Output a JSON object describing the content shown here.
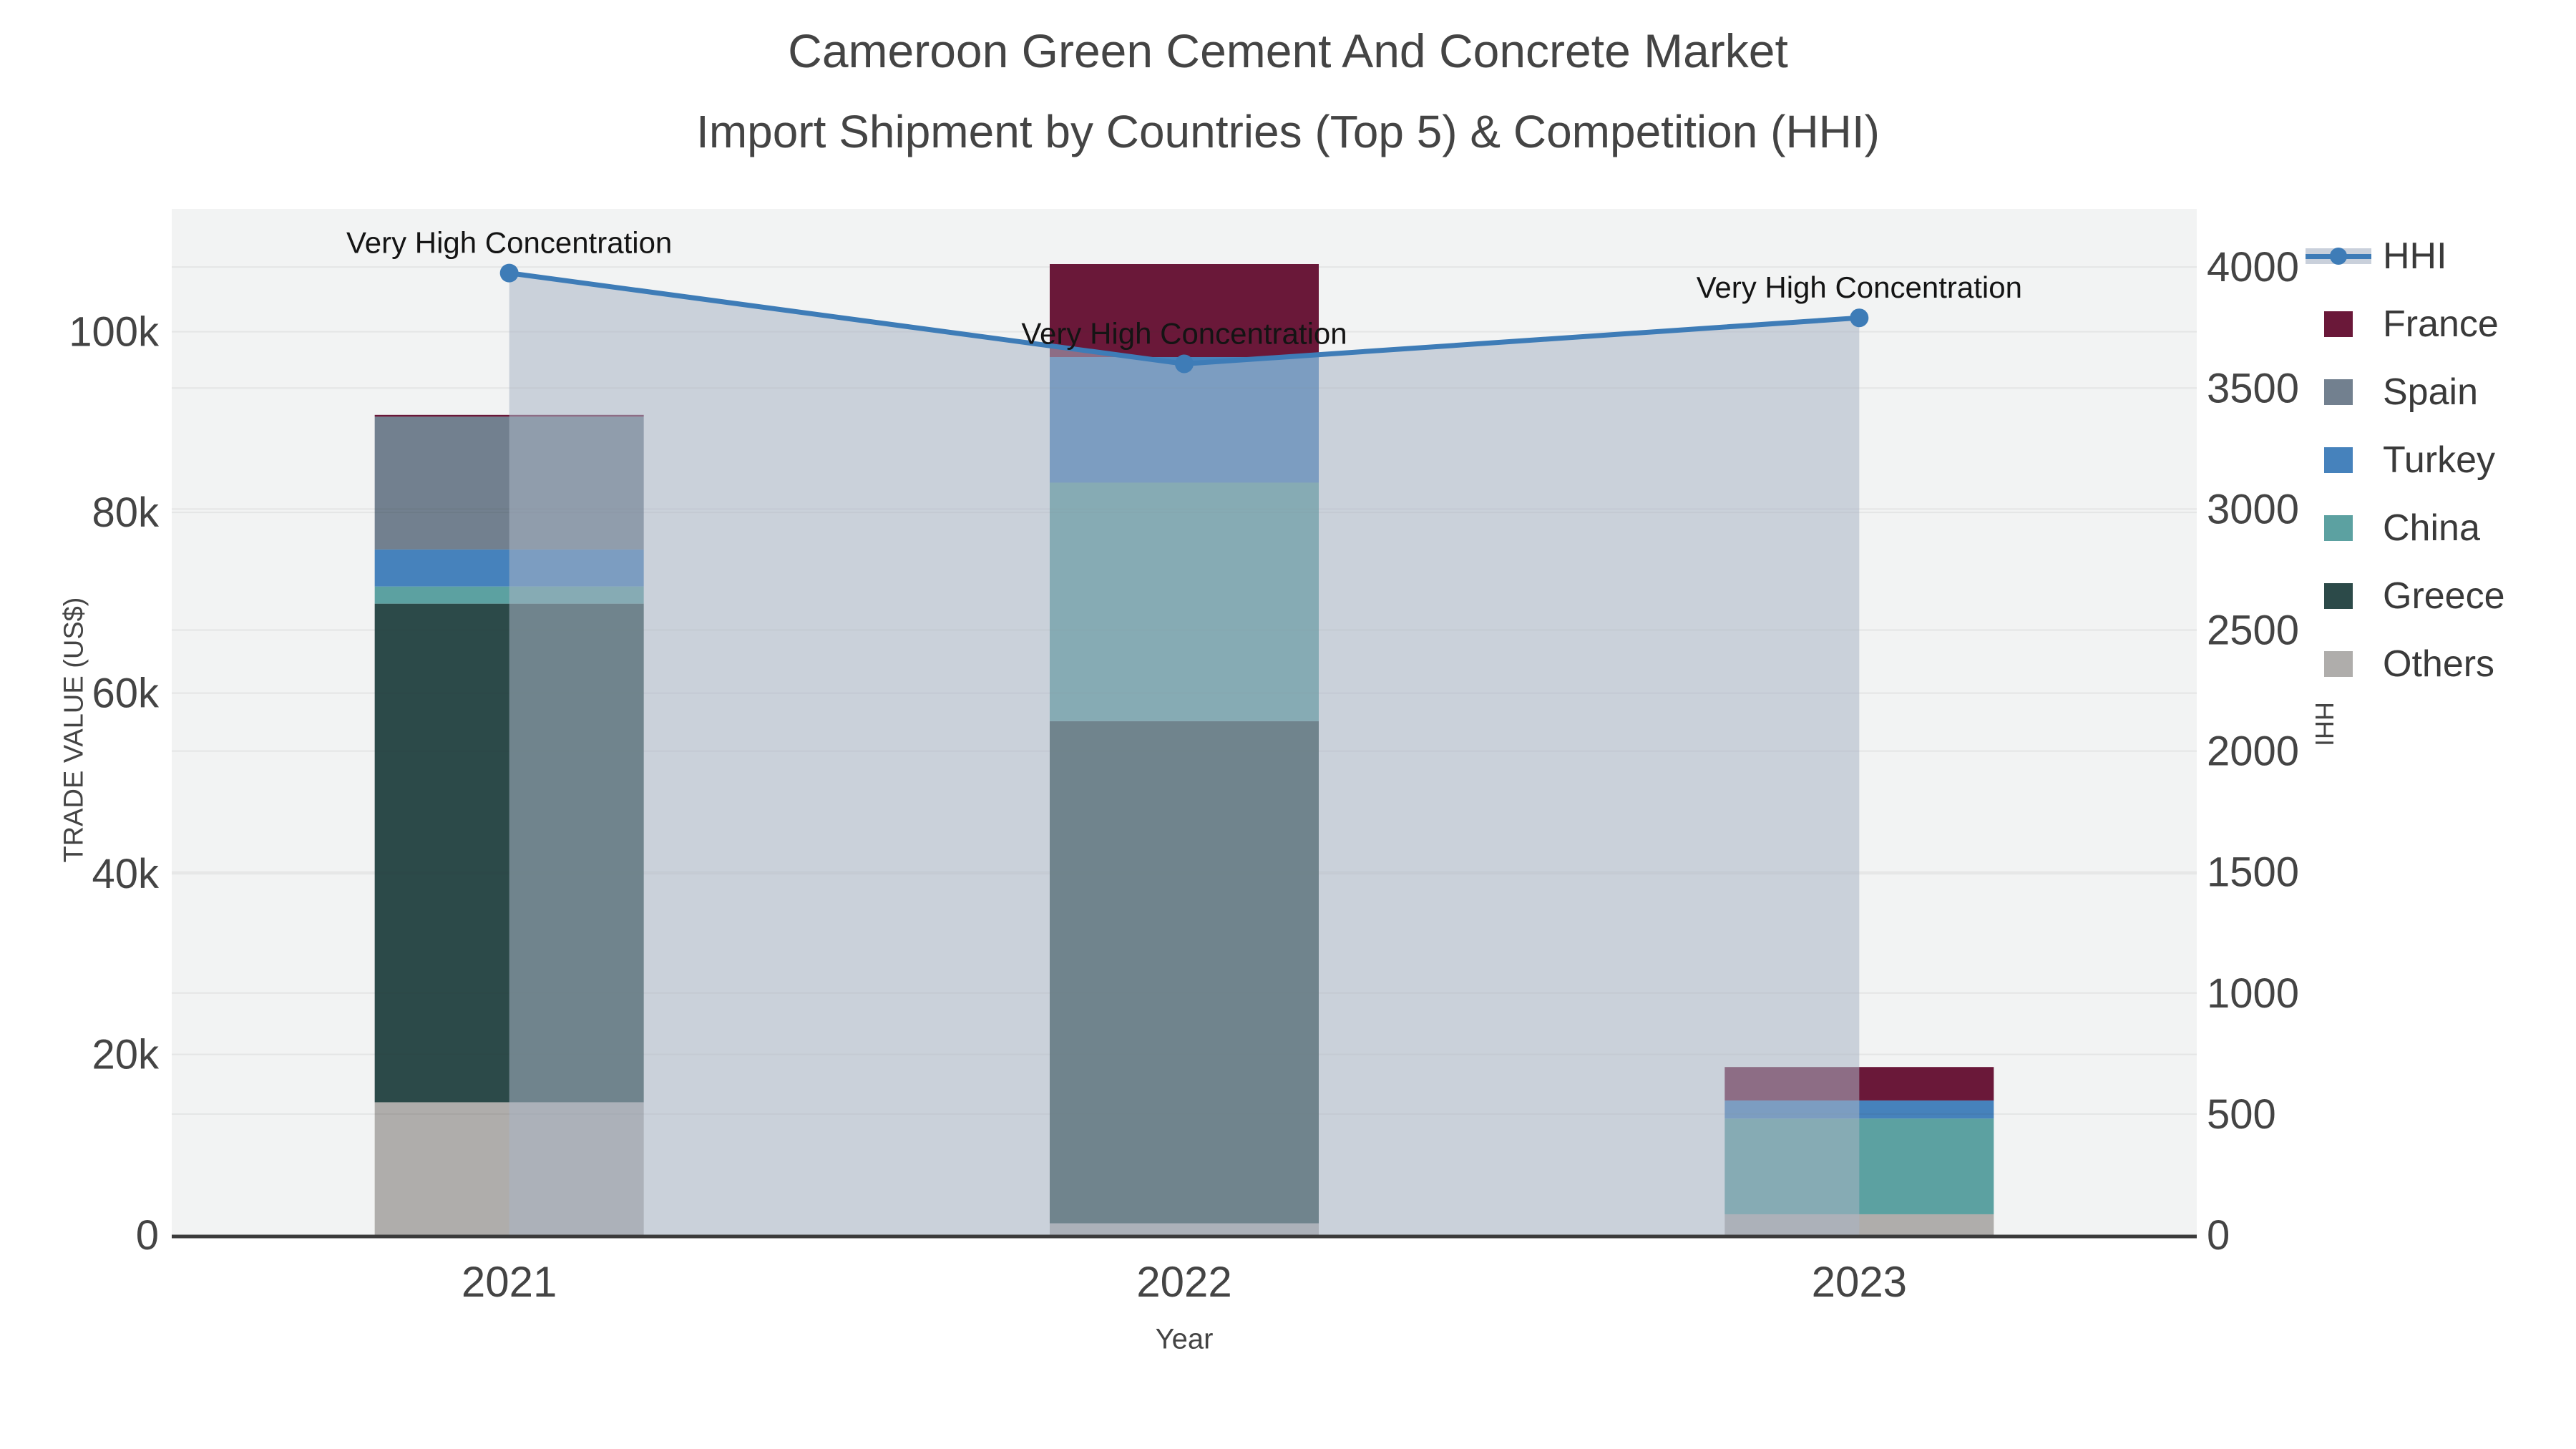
{
  "title": {
    "line1": "Cameroon Green Cement And Concrete Market",
    "line2": "Import Shipment by Countries (Top 5) & Competition (HHI)"
  },
  "axes": {
    "x": {
      "title": "Year",
      "ticks": [
        "2021",
        "2022",
        "2023"
      ]
    },
    "y_left": {
      "title": "TRADE VALUE (US$)",
      "ticks": [
        {
          "label": "0",
          "value": 0
        },
        {
          "label": "20k",
          "value": 20000
        },
        {
          "label": "40k",
          "value": 40000
        },
        {
          "label": "60k",
          "value": 60000
        },
        {
          "label": "80k",
          "value": 80000
        },
        {
          "label": "100k",
          "value": 100000
        }
      ]
    },
    "y_right": {
      "title": "HHI",
      "ticks": [
        {
          "label": "0",
          "value": 0
        },
        {
          "label": "500",
          "value": 500
        },
        {
          "label": "1000",
          "value": 1000
        },
        {
          "label": "1500",
          "value": 1500
        },
        {
          "label": "2000",
          "value": 2000
        },
        {
          "label": "2500",
          "value": 2500
        },
        {
          "label": "3000",
          "value": 3000
        },
        {
          "label": "3500",
          "value": 3500
        },
        {
          "label": "4000",
          "value": 4000
        }
      ]
    }
  },
  "legend": {
    "items": [
      {
        "label": "HHI",
        "glyph": "line",
        "color": "#3E7CB7",
        "band": "#C9D0DB"
      },
      {
        "label": "France",
        "glyph": "square",
        "color": "#6A1839"
      },
      {
        "label": "Spain",
        "glyph": "square",
        "color": "#72808F"
      },
      {
        "label": "Turkey",
        "glyph": "square",
        "color": "#4682BC"
      },
      {
        "label": "China",
        "glyph": "square",
        "color": "#5CA1A1"
      },
      {
        "label": "Greece",
        "glyph": "square",
        "color": "#2C4A49"
      },
      {
        "label": "Others",
        "glyph": "square",
        "color": "#AFADAB"
      }
    ]
  },
  "chart_data": {
    "type": "bar+line",
    "title": "Cameroon Green Cement And Concrete Market — Import Shipment by Countries (Top 5) & Competition (HHI)",
    "categories": [
      "2021",
      "2022",
      "2023"
    ],
    "stacked_bar_series": [
      {
        "name": "France",
        "color": "#6A1839",
        "values": [
          200,
          10300,
          3700
        ]
      },
      {
        "name": "Spain",
        "color": "#72808F",
        "values": [
          14700,
          0,
          0
        ]
      },
      {
        "name": "Turkey",
        "color": "#4682BC",
        "values": [
          4100,
          13900,
          2000
        ]
      },
      {
        "name": "China",
        "color": "#5CA1A1",
        "values": [
          1900,
          26400,
          10600
        ]
      },
      {
        "name": "Greece",
        "color": "#2C4A49",
        "values": [
          55200,
          55600,
          0
        ]
      },
      {
        "name": "Others",
        "color": "#AFADAB",
        "values": [
          14700,
          1300,
          2300
        ]
      }
    ],
    "bar_totals": [
      90800,
      107500,
      18600
    ],
    "line_series": {
      "name": "HHI",
      "axis": "right",
      "color": "#3E7CB7",
      "area_fill": "rgba(170,181,196,0.55)",
      "values": [
        3975,
        3600,
        3790
      ]
    },
    "annotations": [
      {
        "text": "Very High Concentration",
        "category": "2021"
      },
      {
        "text": "Very High Concentration",
        "category": "2022"
      },
      {
        "text": "Very High Concentration",
        "category": "2023"
      }
    ],
    "xlabel": "Year",
    "ylabel_left": "TRADE VALUE (US$)",
    "ylabel_right": "HHI",
    "ylim_left": [
      0,
      113600
    ],
    "ylim_right": [
      0,
      4240
    ],
    "grid": true,
    "legend_position": "right",
    "plot_bg": "#F2F3F3",
    "axis_line_color": "#3B3B3B",
    "tick_color": "#444444",
    "annotation_color": "#141414"
  }
}
